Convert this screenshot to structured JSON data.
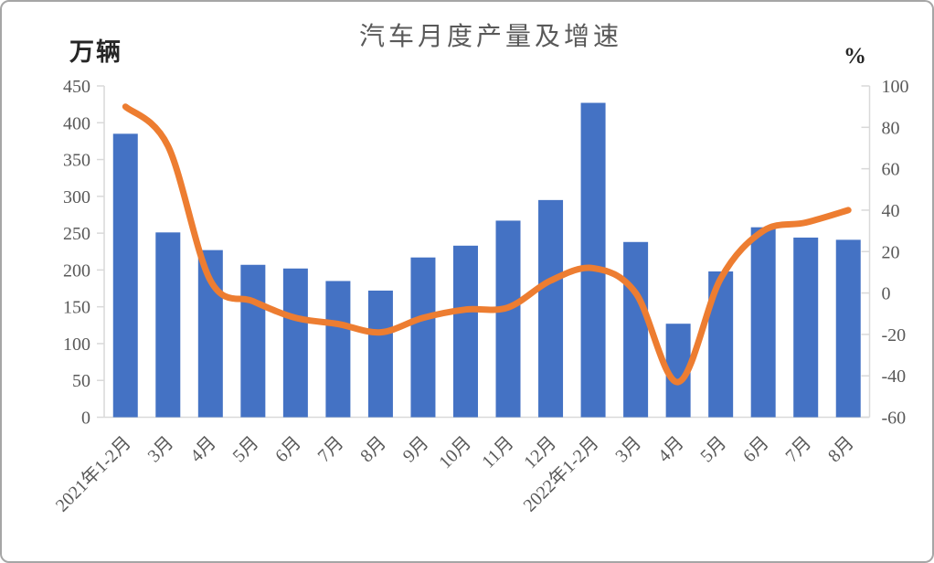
{
  "frame": {
    "background": "#ffffff",
    "border_color": "#a6a6a6"
  },
  "chart": {
    "title": "汽车月度产量及增速",
    "left_axis_unit": "万辆",
    "right_axis_unit": "%"
  },
  "chart_data": {
    "type": "bar+line",
    "title": "汽车月度产量及增速",
    "legend": "none",
    "grid": false,
    "colors": {
      "bar": "#4472C4",
      "line": "#ED7D31",
      "text": "#595959",
      "axis": "#D9D9D9"
    },
    "categories": [
      "2021年1-2月",
      "3月",
      "4月",
      "5月",
      "6月",
      "7月",
      "8月",
      "9月",
      "10月",
      "11月",
      "12月",
      "2022年1-2月",
      "3月",
      "4月",
      "5月",
      "6月",
      "7月",
      "8月"
    ],
    "series": [
      {
        "name": "monthly-production-bars",
        "type": "bar",
        "axis": "left",
        "unit": "万辆",
        "color": "#4472C4",
        "values": [
          385,
          251,
          227,
          207,
          202,
          185,
          172,
          217,
          233,
          267,
          295,
          427,
          238,
          127,
          198,
          258,
          244,
          241
        ]
      },
      {
        "name": "yoy-growth-line",
        "type": "line",
        "axis": "right",
        "unit": "%",
        "color": "#ED7D31",
        "values": [
          90,
          71,
          6,
          -4,
          -12,
          -15,
          -19,
          -12,
          -8,
          -7,
          6,
          12,
          0,
          -43,
          7,
          30,
          34,
          40
        ]
      }
    ],
    "left_axis": {
      "label": "万辆",
      "min": 0,
      "max": 450,
      "step": 50,
      "tick_labels": [
        "450",
        "400",
        "350",
        "300",
        "250",
        "200",
        "150",
        "100",
        "50",
        "0"
      ]
    },
    "right_axis": {
      "label": "%",
      "min": -60,
      "max": 100,
      "step": 20,
      "tick_labels": [
        "100",
        "80",
        "60",
        "40",
        "20",
        "0",
        "-20",
        "-40",
        "-60"
      ]
    }
  }
}
